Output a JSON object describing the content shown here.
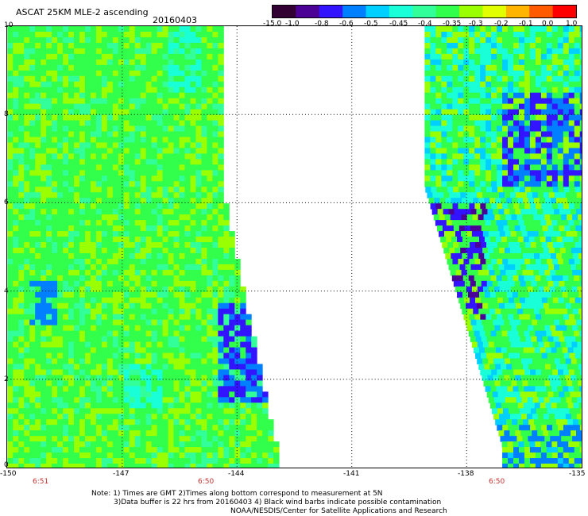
{
  "title": "ASCAT 25KM MLE-2 ascending",
  "date": "20160403",
  "colorbar": {
    "ticks": [
      "-15.0",
      "-1.0",
      "-0.8",
      "-0.6",
      "-0.5",
      "-0.45",
      "-0.4",
      "-0.35",
      "-0.3",
      "-0.2",
      "-0.1",
      "0.0",
      "1.0"
    ],
    "colors": [
      "#330033",
      "#4b0096",
      "#3214ff",
      "#0080ff",
      "#00d0ff",
      "#19ffd8",
      "#32ff9a",
      "#32ff4b",
      "#9aff00",
      "#e2ff00",
      "#ffb400",
      "#ff5a00",
      "#ff0000"
    ]
  },
  "map": {
    "y_labels": [
      "10",
      "8",
      "6",
      "4",
      "2",
      "0"
    ],
    "x_labels": [
      "-150",
      "-147",
      "-144",
      "-141",
      "-138",
      "-135"
    ],
    "lon_range": [
      -150,
      -135
    ],
    "lat_range": [
      0,
      10
    ],
    "time_labels": [
      "6:51",
      "6:50",
      "6:50"
    ]
  },
  "notes": [
    "Note: 1) Times are GMT 2)Times along bottom correspond to measurement at 5N",
    "3)Data buffer is 22 hrs from 20160403 4) Black wind barbs indicate possible contamination",
    "NOAA/NESDIS/Center for Satellite Applications and Research"
  ]
}
